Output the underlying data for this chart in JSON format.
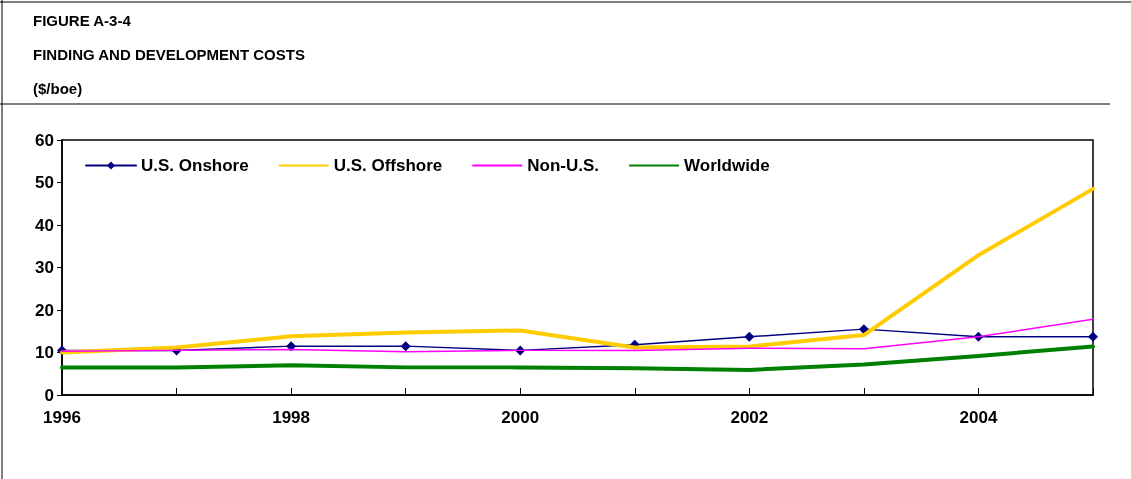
{
  "chart_data": {
    "type": "line",
    "title": "FIGURE A-3-4",
    "subtitle": "FINDING AND DEVELOPMENT COSTS",
    "ylabel": "($/boe)",
    "x": [
      1996,
      1997,
      1998,
      1999,
      2000,
      2001,
      2002,
      2003,
      2004,
      2005
    ],
    "xlim": [
      1996,
      2005
    ],
    "xticks": [
      1996,
      {
        "value": 1997,
        "label": null
      },
      1998,
      {
        "value": 1999,
        "label": null
      },
      2000,
      {
        "value": 2001,
        "label": null
      },
      2002,
      {
        "value": 2003,
        "label": null
      },
      2004,
      {
        "value": 2005,
        "label": null
      }
    ],
    "ylim": [
      0,
      60
    ],
    "yticks": [
      0,
      10,
      20,
      30,
      40,
      50,
      60
    ],
    "series": [
      {
        "name": "U.S. Onshore",
        "color": "#000080",
        "marker": "diamond",
        "values": [
          10.5,
          10.5,
          11.5,
          11.5,
          10.5,
          11.8,
          13.7,
          15.5,
          13.7,
          13.7
        ]
      },
      {
        "name": "U.S. Offshore",
        "color": "#ffcc00",
        "marker": "none",
        "values": [
          10,
          11.2,
          13.8,
          14.7,
          15.2,
          11.2,
          11.4,
          14.1,
          32.9,
          48.5
        ]
      },
      {
        "name": "Non-U.S.",
        "color": "#ff00ff",
        "marker": "none",
        "values": [
          10.3,
          10.5,
          10.7,
          10.2,
          10.5,
          10.5,
          11,
          10.9,
          13.7,
          17.8
        ]
      },
      {
        "name": "Worldwide",
        "color": "#008000",
        "marker": "none",
        "values": [
          6.5,
          6.5,
          7,
          6.5,
          6.5,
          6.3,
          5.9,
          7.2,
          9.2,
          11.4
        ]
      }
    ],
    "legend": "top left",
    "grid": false
  }
}
